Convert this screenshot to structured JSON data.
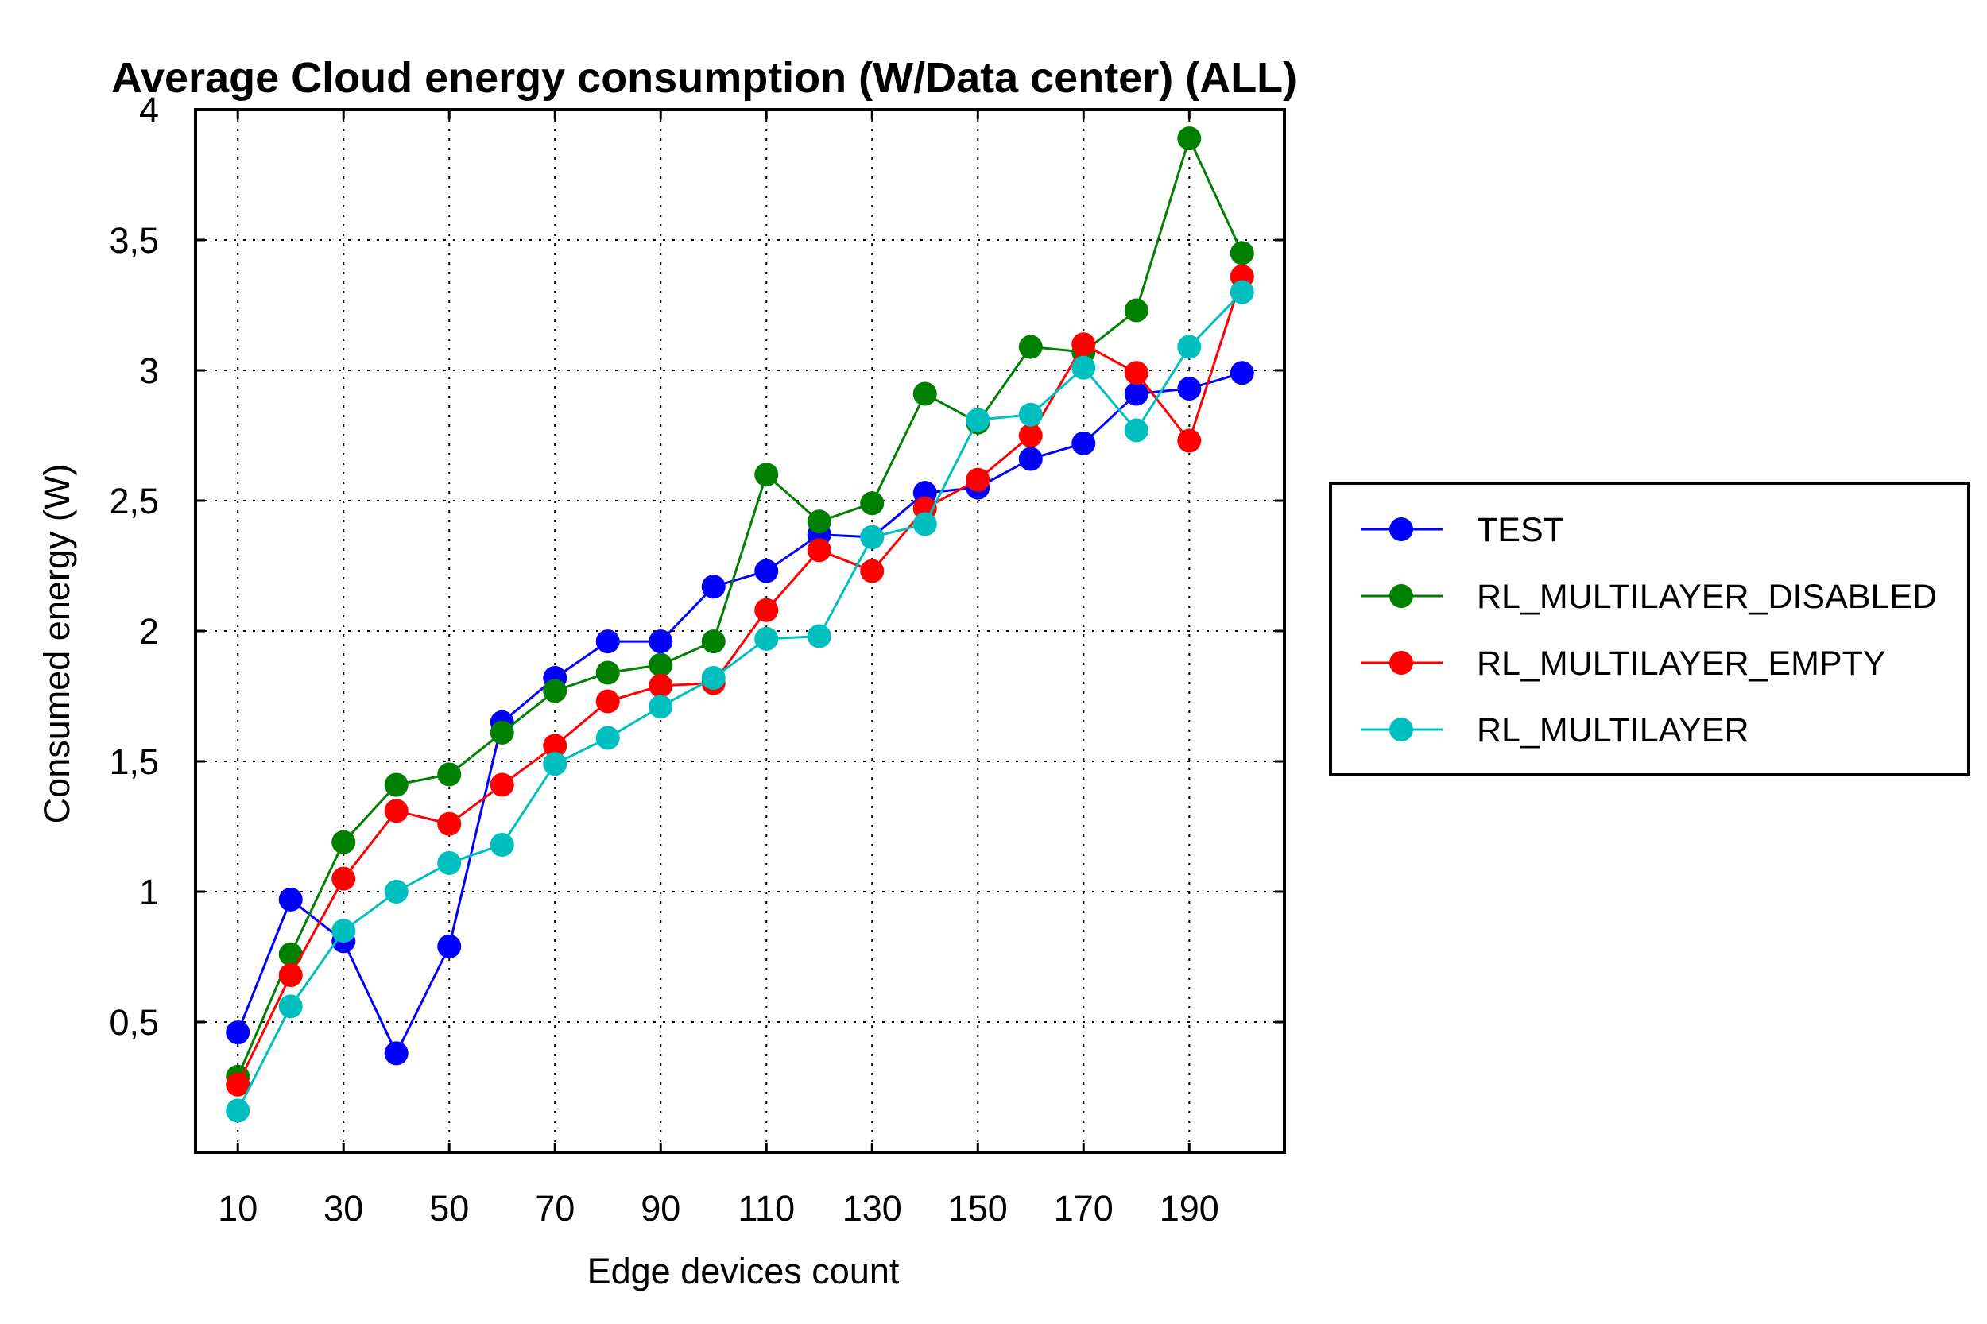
{
  "chart_data": {
    "type": "line",
    "title": "Average Cloud energy consumption (W/Data center) (ALL)",
    "xlabel": "Edge devices count",
    "ylabel": "Consumed energy (W)",
    "x": [
      10,
      20,
      30,
      40,
      50,
      60,
      70,
      80,
      90,
      100,
      110,
      120,
      130,
      140,
      150,
      160,
      170,
      180,
      190,
      200
    ],
    "x_tick_labels": [
      "10",
      "30",
      "50",
      "70",
      "90",
      "110",
      "130",
      "150",
      "170",
      "190"
    ],
    "y_tick_labels": [
      "0,5",
      "1",
      "1,5",
      "2",
      "2,5",
      "3",
      "3,5",
      "4"
    ],
    "xlim": [
      2,
      208
    ],
    "ylim": [
      0,
      4
    ],
    "y_tick_values": [
      0.5,
      1,
      1.5,
      2,
      2.5,
      3,
      3.5,
      4
    ],
    "grid": true,
    "legend_position": "right",
    "series": [
      {
        "name": "TEST",
        "color": "#0000ff",
        "values": [
          0.46,
          0.97,
          0.81,
          0.38,
          0.79,
          1.65,
          1.82,
          1.96,
          1.96,
          2.17,
          2.23,
          2.37,
          2.36,
          2.53,
          2.55,
          2.66,
          2.72,
          2.91,
          2.93,
          2.99
        ]
      },
      {
        "name": "RL_MULTILAYER_DISABLED",
        "color": "#008000",
        "values": [
          0.29,
          0.76,
          1.19,
          1.41,
          1.45,
          1.61,
          1.77,
          1.84,
          1.87,
          1.96,
          2.6,
          2.42,
          2.49,
          2.91,
          2.8,
          3.09,
          3.07,
          3.23,
          3.89,
          3.45
        ]
      },
      {
        "name": "RL_MULTILAYER_EMPTY",
        "color": "#ff0000",
        "values": [
          0.26,
          0.68,
          1.05,
          1.31,
          1.26,
          1.41,
          1.56,
          1.73,
          1.79,
          1.8,
          2.08,
          2.31,
          2.23,
          2.47,
          2.58,
          2.75,
          3.1,
          2.99,
          2.73,
          3.36
        ]
      },
      {
        "name": "RL_MULTILAYER",
        "color": "#00bfbf",
        "values": [
          0.16,
          0.56,
          0.85,
          1.0,
          1.11,
          1.18,
          1.49,
          1.59,
          1.71,
          1.82,
          1.97,
          1.98,
          2.36,
          2.41,
          2.81,
          2.83,
          3.01,
          2.77,
          3.09,
          3.3
        ]
      }
    ]
  }
}
